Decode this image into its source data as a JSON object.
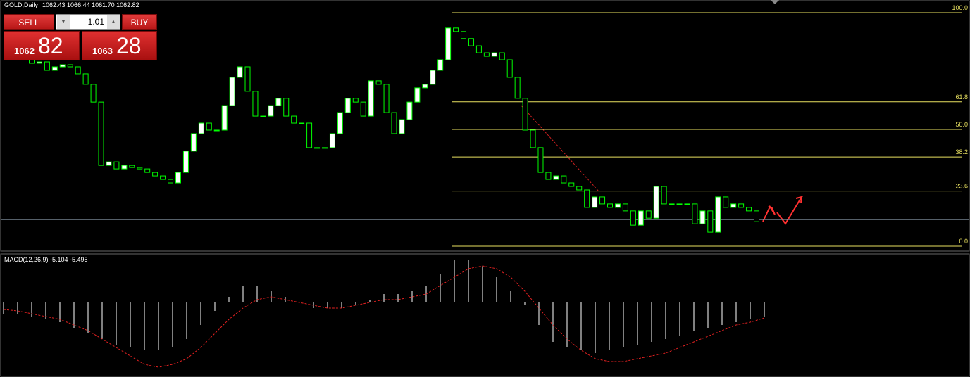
{
  "header": {
    "symbol": "GOLD,Daily",
    "quote": "1062.43 1066.44 1061.70 1062.82"
  },
  "order_panel": {
    "sell": "SELL",
    "buy": "BUY",
    "lot": "1.01",
    "bid_big": "1062",
    "bid_pips": "82",
    "ask_big": "1063",
    "ask_pips": "28"
  },
  "chart_data": [
    {
      "type": "candlestick",
      "ylim": [
        -1.8,
        104.8
      ],
      "up_color": "#ffffff",
      "down_color": "#000000",
      "wick_color": "#00ff00",
      "close": [
        78.3,
        78.9,
        75.3,
        76.8,
        77.7,
        76.8,
        73.8,
        69.3,
        61.7,
        34.6,
        36.1,
        33.1,
        34.6,
        33.7,
        33.1,
        31.6,
        30.1,
        28.6,
        27.1,
        31.6,
        40.7,
        48.2,
        52.7,
        49.7,
        49.7,
        60.2,
        72.3,
        76.8,
        66.3,
        55.7,
        55.7,
        60.2,
        63.3,
        55.7,
        52.7,
        52.7,
        42.2,
        42.2,
        42.2,
        48.2,
        57.2,
        63.3,
        61.7,
        55.7,
        70.8,
        69.3,
        57.2,
        48.2,
        54.2,
        61.7,
        67.8,
        69.3,
        75.3,
        79.8,
        93.4,
        91.9,
        88.9,
        85.8,
        82.8,
        81.3,
        82.8,
        79.8,
        72.3,
        63.3,
        49.7,
        42.2,
        31.6,
        28.6,
        30.1,
        27.1,
        25.6,
        24.1,
        16.6,
        21.1,
        18.1,
        16.6,
        18.1,
        15.1,
        9.0,
        15.1,
        12.0,
        25.6,
        18.1,
        18.1,
        18.1,
        18.1,
        9.6,
        15.1,
        6.0,
        21.1,
        16.6,
        18.1,
        16.6,
        15.1,
        10.5
      ],
      "open": [
        80.0,
        78.3,
        78.9,
        75.3,
        76.8,
        77.7,
        76.8,
        73.8,
        69.3,
        61.7,
        34.6,
        36.1,
        33.1,
        34.6,
        33.7,
        33.1,
        31.6,
        30.1,
        28.6,
        27.1,
        31.6,
        40.7,
        48.2,
        52.7,
        49.7,
        49.7,
        60.2,
        72.3,
        76.8,
        66.3,
        55.7,
        55.7,
        60.2,
        63.3,
        55.7,
        52.7,
        52.7,
        42.2,
        42.2,
        42.2,
        48.2,
        57.2,
        63.3,
        61.7,
        55.7,
        70.8,
        69.3,
        57.2,
        48.2,
        54.2,
        61.7,
        67.8,
        69.3,
        75.3,
        79.8,
        93.4,
        91.9,
        88.9,
        85.8,
        82.8,
        81.3,
        82.8,
        79.8,
        72.3,
        63.3,
        49.7,
        42.2,
        31.6,
        28.6,
        30.1,
        27.1,
        25.6,
        24.1,
        16.6,
        21.1,
        18.1,
        16.6,
        18.1,
        15.1,
        9.0,
        15.1,
        12.0,
        25.6,
        18.1,
        18.1,
        18.1,
        18.1,
        9.6,
        15.1,
        6.0,
        21.1,
        16.6,
        18.1,
        16.6,
        15.1
      ],
      "fib_levels": [
        {
          "value": 100,
          "label": "100.0"
        },
        61.8,
        {
          "value": 50,
          "label": "50.0"
        },
        38.2,
        23.6,
        {
          "value": 0,
          "label": "0.0"
        }
      ],
      "fib_color": "#e8e060",
      "price_line": 11.4,
      "price_line_color": "#8a9aaa"
    },
    {
      "type": "macd",
      "title": "MACD(12,26,9) -5.104 -5.495",
      "ylim": [
        -26,
        16
      ],
      "bar_color": "#ffffff",
      "signal_color": "#e02020",
      "histogram": [
        -4,
        -4,
        -5,
        -6,
        -7,
        -9,
        -11,
        -13,
        -15,
        -16,
        -17,
        -17,
        -16,
        -13,
        -8,
        -3,
        2,
        6,
        6,
        4,
        2,
        0,
        -2,
        -2,
        -2,
        -1,
        1,
        3,
        3,
        4,
        6,
        10,
        15,
        15,
        13,
        9,
        4,
        -1,
        -8,
        -14,
        -16,
        -17,
        -18,
        -17,
        -16,
        -15,
        -14,
        -13,
        -12,
        -10,
        -9,
        -8,
        -7,
        -6,
        -5.104
      ],
      "signal": [
        -2.5,
        -3,
        -4,
        -5,
        -6,
        -8,
        -10,
        -13,
        -16,
        -19,
        -22,
        -23,
        -22,
        -20,
        -16,
        -11,
        -6,
        -2,
        1,
        2,
        1,
        0,
        -1,
        -2,
        -2,
        -1,
        0,
        1,
        1,
        2,
        3,
        6,
        9,
        12,
        13,
        12,
        9,
        4,
        -2,
        -8,
        -13,
        -17,
        -20,
        -21,
        -21,
        -20,
        -19,
        -18,
        -16,
        -14,
        -12,
        -10,
        -8,
        -7,
        -5.495
      ]
    }
  ]
}
